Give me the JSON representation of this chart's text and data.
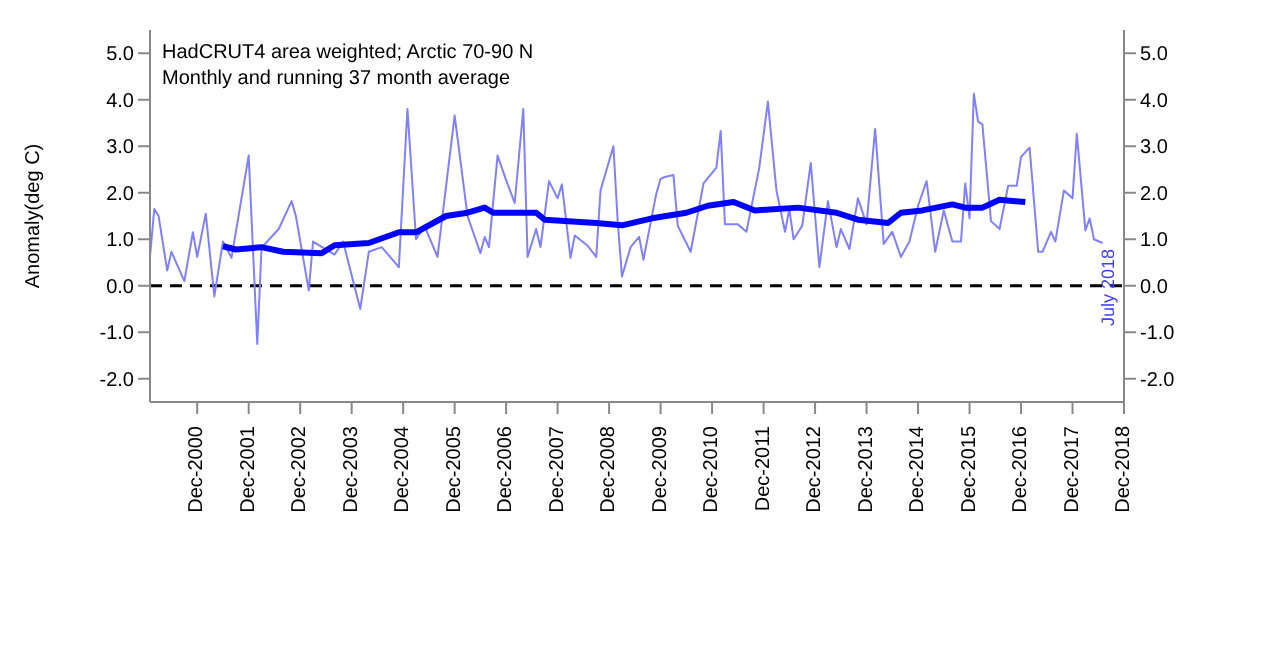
{
  "chart_data": {
    "type": "line",
    "title": "HadCRUT4 area weighted; Arctic 70-90 N",
    "subtitle": "Monthly and running 37 month average",
    "ylabel": "Anomaly(deg C)",
    "annotations": [
      {
        "text": "July 2018",
        "x": "2018-07"
      }
    ],
    "marker": "none",
    "line_style": "solid",
    "xlim": [
      "2000-01",
      "2018-12"
    ],
    "xticks": [
      {
        "value": "2000-12",
        "label": "Dec-2000"
      },
      {
        "value": "2001-12",
        "label": "Dec-2001"
      },
      {
        "value": "2002-12",
        "label": "Dec-2002"
      },
      {
        "value": "2003-12",
        "label": "Dec-2003"
      },
      {
        "value": "2004-12",
        "label": "Dec-2004"
      },
      {
        "value": "2005-12",
        "label": "Dec-2005"
      },
      {
        "value": "2006-12",
        "label": "Dec-2006"
      },
      {
        "value": "2007-12",
        "label": "Dec-2007"
      },
      {
        "value": "2008-12",
        "label": "Dec-2008"
      },
      {
        "value": "2009-12",
        "label": "Dec-2009"
      },
      {
        "value": "2010-12",
        "label": "Dec-2010"
      },
      {
        "value": "2011-12",
        "label": "Dec-2011"
      },
      {
        "value": "2012-12",
        "label": "Dec-2012"
      },
      {
        "value": "2013-12",
        "label": "Dec-2013"
      },
      {
        "value": "2014-12",
        "label": "Dec-2014"
      },
      {
        "value": "2015-12",
        "label": "Dec-2015"
      },
      {
        "value": "2016-12",
        "label": "Dec-2016"
      },
      {
        "value": "2017-12",
        "label": "Dec-2017"
      },
      {
        "value": "2018-12",
        "label": "Dec-2018"
      }
    ],
    "ylim": [
      -2.5,
      5.5
    ],
    "yticks": [
      {
        "value": -2,
        "label": "-2.0"
      },
      {
        "value": -1,
        "label": "-1.0"
      },
      {
        "value": 0,
        "label": "0.0"
      },
      {
        "value": 1,
        "label": "1.0"
      },
      {
        "value": 2,
        "label": "2.0"
      },
      {
        "value": 3,
        "label": "3.0"
      },
      {
        "value": 4,
        "label": "4.0"
      },
      {
        "value": 5,
        "label": "5.0"
      }
    ],
    "y2lim": [
      -2.5,
      5.5
    ],
    "y2ticks": [
      {
        "value": -2,
        "label": "-2.0"
      },
      {
        "value": -1,
        "label": "-1.0"
      },
      {
        "value": 0,
        "label": "0.0"
      },
      {
        "value": 1,
        "label": "1.0"
      },
      {
        "value": 2,
        "label": "2.0"
      },
      {
        "value": 3,
        "label": "3.0"
      },
      {
        "value": 4,
        "label": "4.0"
      },
      {
        "value": 5,
        "label": "5.0"
      }
    ],
    "ref_lines": [
      {
        "axis": "y",
        "value": 0,
        "label": null,
        "color": "#000000",
        "line_style": "dashed"
      }
    ],
    "series": [
      {
        "color": "#8080ff",
        "x": [
          "2000-01",
          "2000-02",
          "2000-03",
          "2000-05",
          "2000-06",
          "2000-09",
          "2000-11",
          "2000-12",
          "2001-02",
          "2001-04",
          "2001-06",
          "2001-08",
          "2001-12",
          "2002-02",
          "2002-03",
          "2002-07",
          "2002-10",
          "2002-11",
          "2003-02",
          "2003-03",
          "2003-08",
          "2003-10",
          "2004-02",
          "2004-04",
          "2004-07",
          "2004-11",
          "2005-01",
          "2005-03",
          "2005-05",
          "2005-08",
          "2005-12",
          "2006-03",
          "2006-06",
          "2006-07",
          "2006-08",
          "2006-10",
          "2006-12",
          "2007-02",
          "2007-04",
          "2007-05",
          "2007-07",
          "2007-08",
          "2007-10",
          "2007-12",
          "2008-01",
          "2008-03",
          "2008-04",
          "2008-07",
          "2008-09",
          "2008-10",
          "2009-01",
          "2009-02",
          "2009-03",
          "2009-05",
          "2009-07",
          "2009-08",
          "2009-11",
          "2009-12",
          "2010-01",
          "2010-03",
          "2010-04",
          "2010-07",
          "2010-10",
          "2011-01",
          "2011-02",
          "2011-03",
          "2011-06",
          "2011-08",
          "2011-11",
          "2012-01",
          "2012-03",
          "2012-05",
          "2012-06",
          "2012-07",
          "2012-09",
          "2012-11",
          "2013-01",
          "2013-03",
          "2013-05",
          "2013-06",
          "2013-08",
          "2013-10",
          "2013-12",
          "2014-02",
          "2014-04",
          "2014-06",
          "2014-08",
          "2014-10",
          "2014-12",
          "2015-02",
          "2015-04",
          "2015-06",
          "2015-08",
          "2015-10",
          "2015-11",
          "2015-12",
          "2016-01",
          "2016-02",
          "2016-03",
          "2016-05",
          "2016-07",
          "2016-09",
          "2016-11",
          "2016-12",
          "2017-02",
          "2017-04",
          "2017-05",
          "2017-07",
          "2017-08",
          "2017-10",
          "2017-12",
          "2018-01",
          "2018-03",
          "2018-04",
          "2018-05",
          "2018-07"
        ],
        "values": [
          0.63,
          1.65,
          1.5,
          0.33,
          0.73,
          0.1,
          1.15,
          0.62,
          1.55,
          -0.23,
          0.95,
          0.6,
          2.8,
          -1.25,
          0.82,
          1.22,
          1.82,
          1.5,
          -0.1,
          0.95,
          0.67,
          0.95,
          -0.5,
          0.73,
          0.83,
          0.4,
          3.8,
          1.0,
          1.28,
          0.62,
          3.66,
          1.5,
          0.7,
          1.05,
          0.83,
          2.8,
          2.27,
          1.78,
          3.8,
          0.62,
          1.22,
          0.83,
          2.25,
          1.88,
          2.18,
          0.6,
          1.08,
          0.86,
          0.62,
          2.05,
          3.0,
          1.39,
          0.2,
          0.83,
          1.05,
          0.56,
          1.98,
          2.3,
          2.34,
          2.38,
          1.29,
          0.73,
          2.2,
          2.54,
          3.33,
          1.32,
          1.32,
          1.16,
          2.54,
          3.96,
          2.05,
          1.16,
          1.65,
          1.0,
          1.29,
          2.64,
          0.4,
          1.82,
          0.83,
          1.22,
          0.79,
          1.88,
          1.32,
          3.37,
          0.9,
          1.16,
          0.62,
          0.95,
          1.72,
          2.25,
          0.73,
          1.62,
          0.95,
          0.95,
          2.2,
          1.45,
          4.13,
          3.53,
          3.47,
          1.39,
          1.22,
          2.15,
          2.15,
          2.77,
          2.97,
          0.73,
          0.73,
          1.16,
          0.95,
          2.05,
          1.88,
          3.27,
          1.19,
          1.45,
          1.0,
          0.92
        ]
      },
      {
        "color": "#0000ff",
        "x": [
          "2001-06",
          "2001-09",
          "2002-03",
          "2002-08",
          "2003-05",
          "2003-08",
          "2004-04",
          "2004-11",
          "2005-03",
          "2005-10",
          "2006-03",
          "2006-07",
          "2006-09",
          "2007-07",
          "2007-09",
          "2008-09",
          "2009-03",
          "2009-10",
          "2010-06",
          "2010-11",
          "2011-05",
          "2011-10",
          "2012-08",
          "2013-05",
          "2013-10",
          "2014-05",
          "2014-08",
          "2015-01",
          "2015-08",
          "2015-11",
          "2016-03",
          "2016-07",
          "2017-01"
        ],
        "values": [
          0.85,
          0.78,
          0.83,
          0.73,
          0.7,
          0.87,
          0.92,
          1.15,
          1.15,
          1.5,
          1.57,
          1.68,
          1.57,
          1.57,
          1.42,
          1.35,
          1.3,
          1.45,
          1.57,
          1.72,
          1.8,
          1.62,
          1.68,
          1.57,
          1.42,
          1.35,
          1.57,
          1.62,
          1.75,
          1.68,
          1.68,
          1.85,
          1.8
        ]
      }
    ]
  }
}
